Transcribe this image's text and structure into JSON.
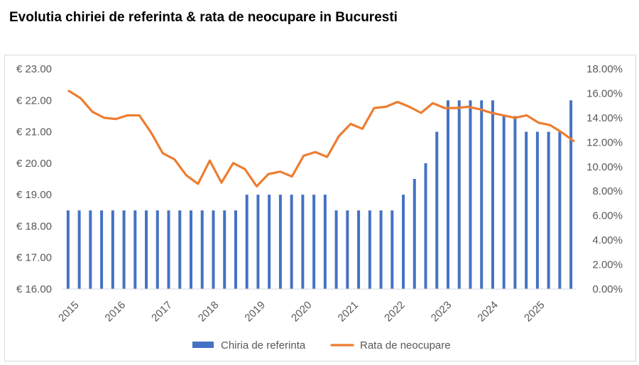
{
  "title": "Evolutia chiriei de referinta & rata de neocupare in Bucuresti",
  "chart_data": {
    "type": "bar+line",
    "title": "Evolutia chiriei de referinta & rata de neocupare in Bucuresti",
    "x_tick_labels": [
      "2015",
      "2016",
      "2017",
      "2018",
      "2019",
      "2020",
      "2021",
      "2022",
      "2023",
      "2024",
      "2025"
    ],
    "y_left": {
      "min": 16,
      "max": 23,
      "step": 1,
      "tick_labels": [
        "€ 16.00",
        "€ 17.00",
        "€ 18.00",
        "€ 19.00",
        "€ 20.00",
        "€ 21.00",
        "€ 22.00",
        "€ 23.00"
      ]
    },
    "y_right": {
      "min": 0,
      "max": 18,
      "step": 2,
      "tick_labels": [
        "0.00%",
        "2.00%",
        "4.00%",
        "6.00%",
        "8.00%",
        "10.00%",
        "12.00%",
        "14.00%",
        "16.00%",
        "18.00%"
      ]
    },
    "grid": false,
    "legend_position": "bottom",
    "series": [
      {
        "name": "Chiria de referinta",
        "kind": "bar",
        "axis": "left",
        "color": "#4472c4",
        "values": [
          18.5,
          18.5,
          18.5,
          18.5,
          18.5,
          18.5,
          18.5,
          18.5,
          18.5,
          18.5,
          18.5,
          18.5,
          18.5,
          18.5,
          18.5,
          18.5,
          19,
          19,
          19,
          19,
          19,
          19,
          19,
          19,
          18.5,
          18.5,
          18.5,
          18.5,
          18.5,
          18.5,
          19,
          19.5,
          20,
          21,
          22,
          22,
          22,
          22,
          22,
          21.5,
          21.5,
          21,
          21,
          21,
          21,
          22
        ]
      },
      {
        "name": "Rata de neocupare",
        "kind": "line",
        "axis": "right",
        "color": "#ed7d31",
        "values": [
          16.2,
          15.6,
          14.5,
          14.0,
          13.9,
          14.2,
          14.2,
          12.8,
          11.1,
          10.6,
          9.3,
          8.6,
          10.5,
          8.7,
          10.3,
          9.8,
          8.4,
          9.4,
          9.6,
          9.2,
          10.9,
          11.2,
          10.8,
          12.5,
          13.5,
          13.1,
          14.8,
          14.9,
          15.3,
          14.9,
          14.4,
          15.2,
          14.8,
          14.8,
          14.9,
          14.7,
          14.4,
          14.2,
          14.0,
          14.2,
          13.6,
          13.4,
          12.8,
          12.1
        ]
      }
    ]
  }
}
